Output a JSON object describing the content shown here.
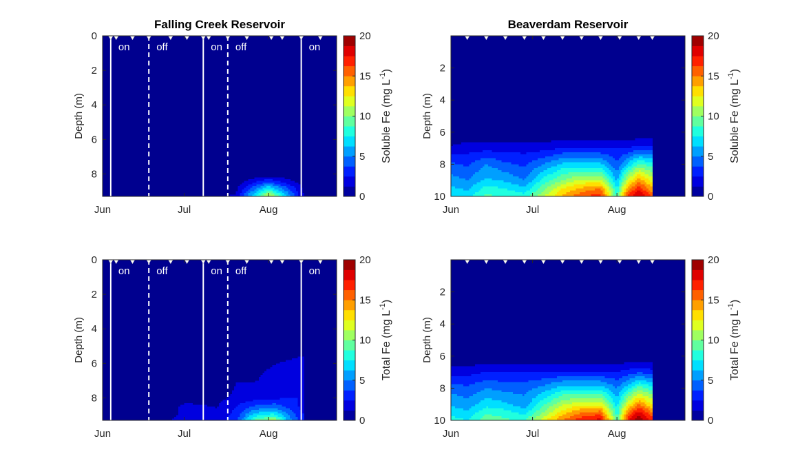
{
  "colormap": {
    "name": "jet",
    "low": "#00007f",
    "high": "#7f0000",
    "plot_background": "#00008f"
  },
  "line_color": "#ffffff",
  "chart_data": [
    {
      "type": "heatmap",
      "title": "Falling Creek Reservoir",
      "ylabel": "Depth (m)",
      "xticks": [
        "Jun",
        "Jul",
        "Aug"
      ],
      "ylim": [
        0,
        9.3
      ],
      "yticks": [
        "0",
        "2",
        "4",
        "6",
        "8"
      ],
      "x": [
        "Jun",
        "Jun 20",
        "Jul",
        "Jul 20",
        "Aug",
        "Aug 14"
      ],
      "depth": [
        0,
        4,
        6,
        7,
        8,
        8.5,
        9,
        9.3
      ],
      "values": [
        [
          0,
          0,
          0,
          0,
          0,
          0
        ],
        [
          0,
          0,
          0,
          0,
          0,
          0
        ],
        [
          0,
          0,
          0,
          0,
          0,
          0
        ],
        [
          0,
          0,
          0,
          0,
          0,
          0
        ],
        [
          0,
          0,
          0,
          0,
          0,
          0
        ],
        [
          0,
          0,
          0,
          0.5,
          4,
          0.5
        ],
        [
          0,
          0,
          0,
          1,
          9,
          1
        ],
        [
          0,
          0,
          0,
          1.5,
          12,
          1
        ]
      ],
      "colorbar": {
        "label": "Soluble Fe (mg L",
        "label_sup": "-1",
        "label_end": ")",
        "ticks": [
          "0",
          "5",
          "10",
          "15",
          "20"
        ],
        "clim": [
          0,
          20
        ]
      },
      "oxygenation": {
        "lines": [
          {
            "date": "Jun 4",
            "style": "solid"
          },
          {
            "date": "Jun 18",
            "style": "dashed"
          },
          {
            "date": "Jul 8",
            "style": "solid"
          },
          {
            "date": "Jul 17",
            "style": "dashed"
          },
          {
            "date": "Aug 13",
            "style": "solid"
          }
        ],
        "labels": [
          "on",
          "off",
          "on",
          "off",
          "on"
        ]
      },
      "sampling_dates": [
        "Jun 4",
        "Jun 6",
        "Jun 12",
        "Jun 18",
        "Jun 26",
        "Jul 2",
        "Jul 8",
        "Jul 10",
        "Jul 17",
        "Jul 24",
        "Aug 2",
        "Aug 6",
        "Aug 13",
        "Aug 20"
      ]
    },
    {
      "type": "heatmap",
      "title": "Beaverdam Reservoir",
      "ylabel": "Depth (m)",
      "xticks": [
        "Jun",
        "Jul",
        "Aug"
      ],
      "ylim": [
        0,
        10
      ],
      "yticks": [
        "2",
        "4",
        "6",
        "8",
        "10"
      ],
      "x": [
        "Jun",
        "Jun 7",
        "Jun 14",
        "Jun 21",
        "Jun 28",
        "Jul 5",
        "Jul 12",
        "Jul 19",
        "Jul 26",
        "Aug",
        "Aug 5",
        "Aug 9",
        "Aug 14"
      ],
      "depth": [
        0,
        6,
        7,
        8,
        9,
        9.5,
        10
      ],
      "values": [
        [
          0,
          0,
          0,
          0,
          0,
          0,
          0,
          0,
          0,
          0,
          0,
          0,
          0
        ],
        [
          0,
          0,
          0,
          0,
          0,
          0,
          0,
          0,
          0,
          0,
          0,
          0,
          0
        ],
        [
          1.5,
          2,
          2,
          2,
          2,
          2,
          2.5,
          2.5,
          2.5,
          2.5,
          2.5,
          3,
          3
        ],
        [
          4,
          3.5,
          5,
          4,
          3.5,
          5,
          6.5,
          6.5,
          6.5,
          4,
          6.5,
          9,
          8
        ],
        [
          5.5,
          5,
          6.5,
          6,
          5,
          8,
          10,
          11.5,
          11.5,
          6,
          11.5,
          14.5,
          12
        ],
        [
          6.5,
          6,
          8,
          7.5,
          6.5,
          9.5,
          12.5,
          14,
          15,
          7.5,
          14.5,
          17,
          14
        ],
        [
          7.5,
          7,
          9,
          8.5,
          8,
          11,
          14,
          16,
          17,
          8.5,
          16.5,
          19,
          16
        ]
      ],
      "colorbar": {
        "label": "Soluble Fe (mg L",
        "label_sup": "-1",
        "label_end": ")",
        "ticks": [
          "0",
          "5",
          "10",
          "15",
          "20"
        ],
        "clim": [
          0,
          20
        ]
      },
      "sampling_dates": [
        "Jun 7",
        "Jun 14",
        "Jun 21",
        "Jun 28",
        "Jul 5",
        "Jul 12",
        "Jul 19",
        "Jul 26",
        "Aug 2",
        "Aug 9",
        "Aug 14"
      ]
    },
    {
      "type": "heatmap",
      "title": "",
      "ylabel": "Depth (m)",
      "xticks": [
        "Jun",
        "Jul",
        "Aug"
      ],
      "ylim": [
        0,
        9.3
      ],
      "yticks": [
        "0",
        "2",
        "4",
        "6",
        "8"
      ],
      "x": [
        "Jun",
        "Jun 20",
        "Jul",
        "Jul 13",
        "Jul 20",
        "Jul 27",
        "Aug 3",
        "Aug 8",
        "Aug 14"
      ],
      "depth": [
        0,
        4,
        5.5,
        6,
        7,
        8,
        8.5,
        9,
        9.3
      ],
      "values": [
        [
          0,
          0,
          0,
          0,
          0,
          0,
          0,
          0,
          0
        ],
        [
          0,
          0,
          0,
          0,
          0,
          0,
          0,
          0,
          0.8
        ],
        [
          0,
          0,
          0,
          0,
          0,
          0,
          0,
          0.8,
          1.2
        ],
        [
          0,
          0,
          0,
          0,
          0.8,
          1,
          1.2,
          1.5,
          1.8
        ],
        [
          0,
          0,
          0,
          0,
          1.2,
          1.2,
          1.6,
          1.8,
          2
        ],
        [
          0,
          0,
          0.8,
          0.9,
          1.5,
          2,
          2.2,
          2.5,
          2.5
        ],
        [
          0,
          0,
          1.5,
          1.2,
          2.5,
          4,
          4.5,
          3.5,
          2
        ],
        [
          0,
          0,
          1.6,
          1.5,
          3,
          7,
          8,
          5,
          2.5
        ],
        [
          0,
          0.5,
          1.8,
          1.7,
          3.5,
          9,
          11,
          6,
          2.5
        ]
      ],
      "colorbar": {
        "label": "Total Fe (mg L",
        "label_sup": "-1",
        "label_end": ")",
        "ticks": [
          "0",
          "5",
          "10",
          "15",
          "20"
        ],
        "clim": [
          0,
          20
        ]
      },
      "oxygenation": {
        "lines": [
          {
            "date": "Jun 4",
            "style": "solid"
          },
          {
            "date": "Jun 18",
            "style": "dashed"
          },
          {
            "date": "Jul 8",
            "style": "solid"
          },
          {
            "date": "Jul 17",
            "style": "dashed"
          },
          {
            "date": "Aug 13",
            "style": "solid"
          }
        ],
        "labels": [
          "on",
          "off",
          "on",
          "off",
          "on"
        ]
      },
      "sampling_dates": [
        "Jun 4",
        "Jun 6",
        "Jun 12",
        "Jun 18",
        "Jun 26",
        "Jul 2",
        "Jul 8",
        "Jul 10",
        "Jul 17",
        "Jul 24",
        "Aug 2",
        "Aug 6",
        "Aug 13",
        "Aug 20"
      ]
    },
    {
      "type": "heatmap",
      "title": "",
      "ylabel": "Depth (m)",
      "xticks": [
        "Jun",
        "Jul",
        "Aug"
      ],
      "ylim": [
        0,
        10
      ],
      "yticks": [
        "2",
        "4",
        "6",
        "8",
        "10"
      ],
      "x": [
        "Jun",
        "Jun 7",
        "Jun 14",
        "Jun 21",
        "Jun 28",
        "Jul 5",
        "Jul 12",
        "Jul 19",
        "Jul 26",
        "Aug",
        "Aug 5",
        "Aug 9",
        "Aug 14"
      ],
      "depth": [
        0,
        6,
        7,
        8,
        9,
        9.5,
        10
      ],
      "values": [
        [
          0,
          0,
          0,
          0,
          0,
          0,
          0,
          0,
          0,
          0,
          0,
          0,
          0
        ],
        [
          0,
          0,
          0,
          0,
          0,
          0,
          0,
          0,
          0,
          0,
          0,
          0,
          0
        ],
        [
          2,
          2,
          2.5,
          2.5,
          2.5,
          2.5,
          2.5,
          2.5,
          2.5,
          2.5,
          3,
          3.5,
          3
        ],
        [
          4.5,
          4,
          5,
          4.5,
          4.5,
          5.5,
          7,
          7,
          7,
          5,
          7,
          9.5,
          8
        ],
        [
          6,
          5.5,
          7,
          6.5,
          5.5,
          8.5,
          11,
          12,
          12,
          7,
          12,
          15,
          12.5
        ],
        [
          7,
          6.5,
          8.5,
          8,
          7,
          10,
          13,
          15,
          15.5,
          8,
          15,
          18,
          15
        ],
        [
          8,
          7.5,
          9.5,
          9,
          8.5,
          12,
          15,
          17,
          18,
          9,
          17,
          20,
          17
        ]
      ],
      "colorbar": {
        "label": "Total Fe (mg L",
        "label_sup": "-1",
        "label_end": ")",
        "ticks": [
          "0",
          "5",
          "10",
          "15",
          "20"
        ],
        "clim": [
          0,
          20
        ]
      },
      "sampling_dates": [
        "Jun 7",
        "Jun 14",
        "Jun 21",
        "Jun 28",
        "Jul 5",
        "Jul 12",
        "Jul 19",
        "Jul 26",
        "Aug 2",
        "Aug 9",
        "Aug 14"
      ]
    }
  ]
}
